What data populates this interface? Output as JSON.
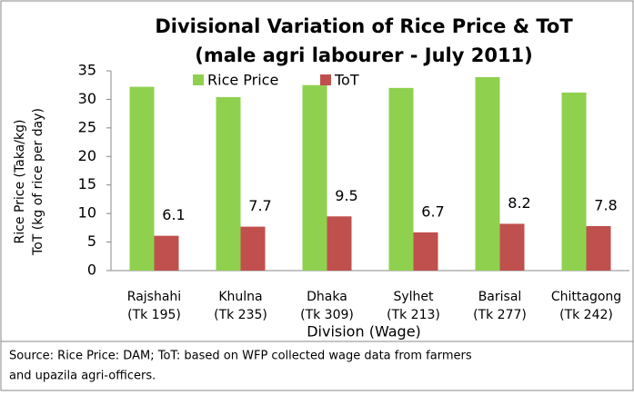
{
  "chart_data": {
    "type": "bar",
    "title": [
      "Divisional Variation of Rice Price & ToT",
      "(male agri labourer - July 2011)"
    ],
    "y_label": [
      "Rice Price (Taka/kg)",
      "ToT (kg of rice per day)"
    ],
    "x_label": "Division (Wage)",
    "source": [
      "Source: Rice Price: DAM; ToT: based on WFP collected wage data from farmers",
      "and upazila agri-officers."
    ],
    "categories": [
      [
        "Rajshahi",
        "(Tk 195)"
      ],
      [
        "Khulna",
        "(Tk 235)"
      ],
      [
        "Dhaka",
        "(Tk 309)"
      ],
      [
        "Sylhet",
        "(Tk 213)"
      ],
      [
        "Barisal",
        "(Tk 277)"
      ],
      [
        "Chittagong",
        "(Tk 242)"
      ]
    ],
    "series": [
      {
        "name": "Rice Price",
        "color": "#8fd14f",
        "values": [
          32.2,
          30.4,
          32.5,
          32,
          33.9,
          31.2
        ]
      },
      {
        "name": "ToT",
        "color": "#c0504d",
        "values": [
          6.1,
          7.7,
          9.5,
          6.7,
          8.2,
          7.8
        ]
      }
    ],
    "ylim": [
      0,
      35
    ],
    "yticks": [
      0,
      5,
      10,
      15,
      20,
      25,
      30,
      35
    ],
    "legend": "top-left"
  }
}
